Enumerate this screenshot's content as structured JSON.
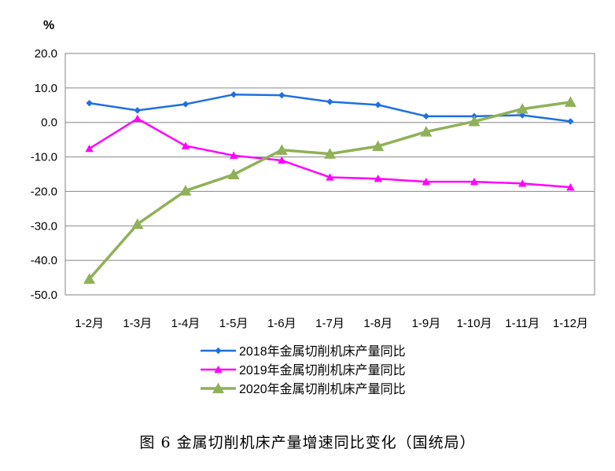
{
  "caption": "图 6  金属切削机床产量增速同比变化（国统局）",
  "chart_data": {
    "type": "line",
    "unit_label": "%",
    "categories": [
      "1-2月",
      "1-3月",
      "1-4月",
      "1-5月",
      "1-6月",
      "1-7月",
      "1-8月",
      "1-9月",
      "1-10月",
      "1-11月",
      "1-12月"
    ],
    "ylim": [
      -50,
      20
    ],
    "yticks": [
      "20.0",
      "10.0",
      "0.0",
      "-10.0",
      "-20.0",
      "-30.0",
      "-40.0",
      "-50.0"
    ],
    "ytick_values": [
      20,
      10,
      0,
      -10,
      -20,
      -30,
      -40,
      -50
    ],
    "grid": true,
    "legend_position": "bottom",
    "series": [
      {
        "name": "2018年金属切削机床产量同比",
        "color": "#1f6fe0",
        "marker": "diamond",
        "values": [
          5.6,
          3.5,
          5.3,
          8.1,
          7.9,
          6.0,
          5.1,
          1.8,
          1.8,
          2.1,
          0.3
        ]
      },
      {
        "name": "2019年金属切削机床产量同比",
        "color": "#ff00ff",
        "marker": "triangle-small",
        "values": [
          -7.6,
          1.1,
          -6.8,
          -9.6,
          -11.0,
          -15.9,
          -16.3,
          -17.2,
          -17.2,
          -17.7,
          -18.8
        ]
      },
      {
        "name": "2020年金属切削机床产量同比",
        "color": "#8fb158",
        "marker": "triangle",
        "values": [
          -45.4,
          -29.5,
          -19.8,
          -15.1,
          -8.0,
          -9.1,
          -6.9,
          -2.7,
          0.3,
          3.9,
          5.9
        ]
      }
    ]
  }
}
